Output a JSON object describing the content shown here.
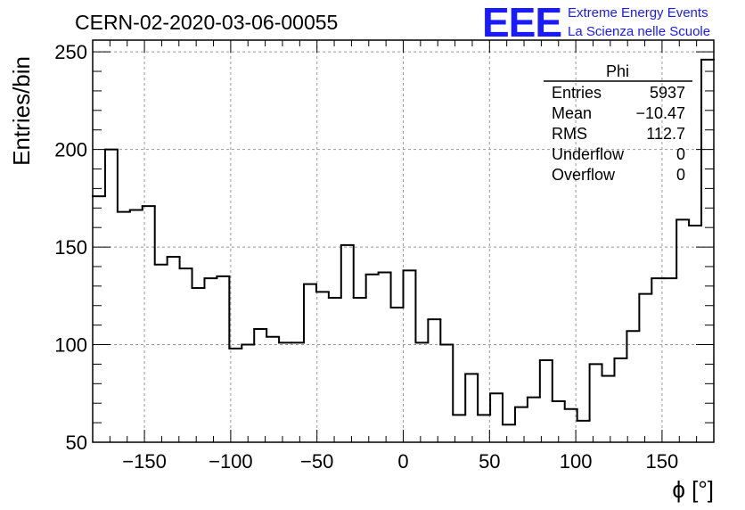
{
  "chart_data": {
    "type": "histogram",
    "title": "CERN-02-2020-03-06-00055",
    "xlabel": "ϕ [°]",
    "ylabel": "Entries/bin",
    "xlim": [
      -180,
      180
    ],
    "ylim": [
      50,
      256
    ],
    "grid": true,
    "x_ticks": [
      -150,
      -100,
      -50,
      0,
      50,
      100,
      150
    ],
    "y_ticks": [
      50,
      100,
      150,
      200,
      250
    ],
    "bin_edges": [
      -180,
      -172.8,
      -165.6,
      -158.4,
      -151.2,
      -144,
      -136.8,
      -129.6,
      -122.4,
      -115.2,
      -108,
      -100.8,
      -93.6,
      -86.4,
      -79.2,
      -72,
      -64.8,
      -57.6,
      -50.4,
      -43.2,
      -36,
      -28.8,
      -21.6,
      -14.4,
      -7.2,
      0,
      7.2,
      14.4,
      21.6,
      28.8,
      36,
      43.2,
      50.4,
      57.6,
      64.8,
      72,
      79.2,
      86.4,
      93.6,
      100.8,
      108,
      115.2,
      122.4,
      129.6,
      136.8,
      144,
      151.2,
      158.4,
      165.6,
      172.8,
      180
    ],
    "values": [
      176,
      200,
      168,
      169,
      171,
      141,
      145,
      139,
      129,
      134,
      135,
      98,
      100,
      108,
      104,
      101,
      101,
      131,
      127,
      124,
      151,
      124,
      136,
      137,
      119,
      138,
      101,
      113,
      100,
      64,
      85,
      64,
      75,
      59,
      68,
      73,
      92,
      71,
      67,
      61,
      90,
      84,
      93,
      107,
      126,
      134,
      134,
      164,
      161,
      246
    ],
    "stats": {
      "name": "Phi",
      "rows": [
        {
          "label": "Entries",
          "value": "5937"
        },
        {
          "label": "Mean",
          "value": "−10.47"
        },
        {
          "label": "RMS",
          "value": "112.7"
        },
        {
          "label": "Underflow",
          "value": "0"
        },
        {
          "label": "Overflow",
          "value": "0"
        }
      ]
    }
  },
  "logo": {
    "mark": "EEE",
    "line1": "Extreme Energy Events",
    "line2": "La Scienza nelle Scuole"
  },
  "colors": {
    "histogram": "#000000",
    "grid": "#999999",
    "logo": "#1a1aff"
  }
}
